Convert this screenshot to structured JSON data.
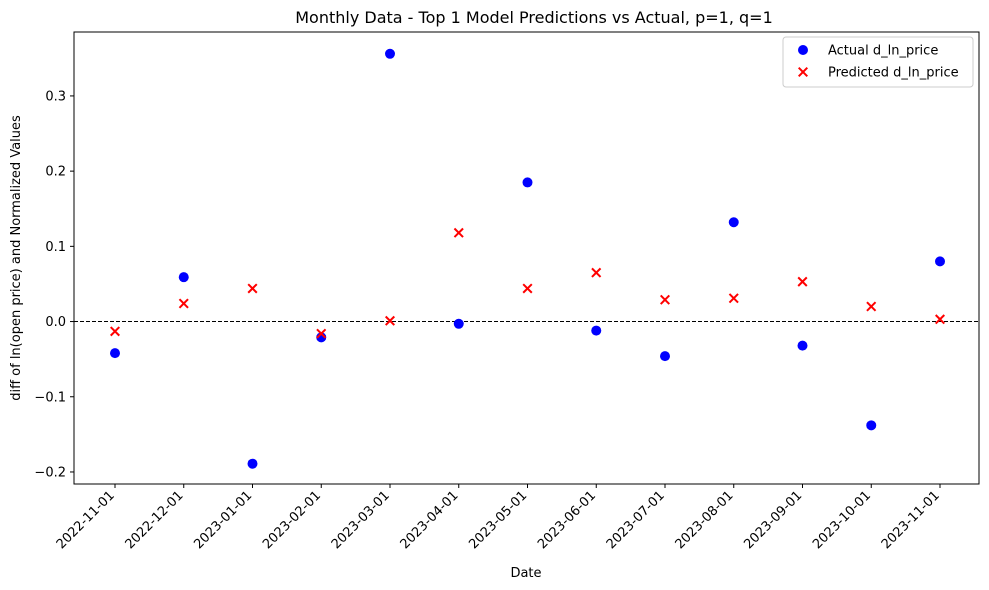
{
  "chart_data": {
    "type": "scatter",
    "title": "Monthly Data - Top 1 Model Predictions vs Actual, p=1, q=1",
    "xlabel": "Date",
    "ylabel": "diff of ln(open price) and Normalized Values",
    "categories": [
      "2022-11-01",
      "2022-12-01",
      "2023-01-01",
      "2023-02-01",
      "2023-03-01",
      "2023-04-01",
      "2023-05-01",
      "2023-06-01",
      "2023-07-01",
      "2023-08-01",
      "2023-09-01",
      "2023-10-01",
      "2023-11-01"
    ],
    "yticks": [
      "−0.2",
      "−0.1",
      "0.0",
      "0.1",
      "0.2",
      "0.3"
    ],
    "ytick_values": [
      -0.2,
      -0.1,
      0.0,
      0.1,
      0.2,
      0.3
    ],
    "ylim": [
      -0.216,
      0.385
    ],
    "reference_line_y": 0.0,
    "legend_position": "top-right",
    "grid": false,
    "series": [
      {
        "name": "Actual d_ln_price",
        "marker": "circle",
        "color": "#0000ff",
        "values": [
          -0.042,
          0.059,
          -0.189,
          -0.021,
          0.356,
          -0.003,
          0.185,
          -0.012,
          -0.046,
          0.132,
          -0.032,
          -0.138,
          0.08
        ]
      },
      {
        "name": "Predicted d_ln_price",
        "marker": "x",
        "color": "#ff0000",
        "values": [
          -0.013,
          0.024,
          0.044,
          -0.016,
          0.001,
          0.118,
          0.044,
          0.065,
          0.029,
          0.031,
          0.053,
          0.02,
          0.003
        ]
      }
    ]
  }
}
